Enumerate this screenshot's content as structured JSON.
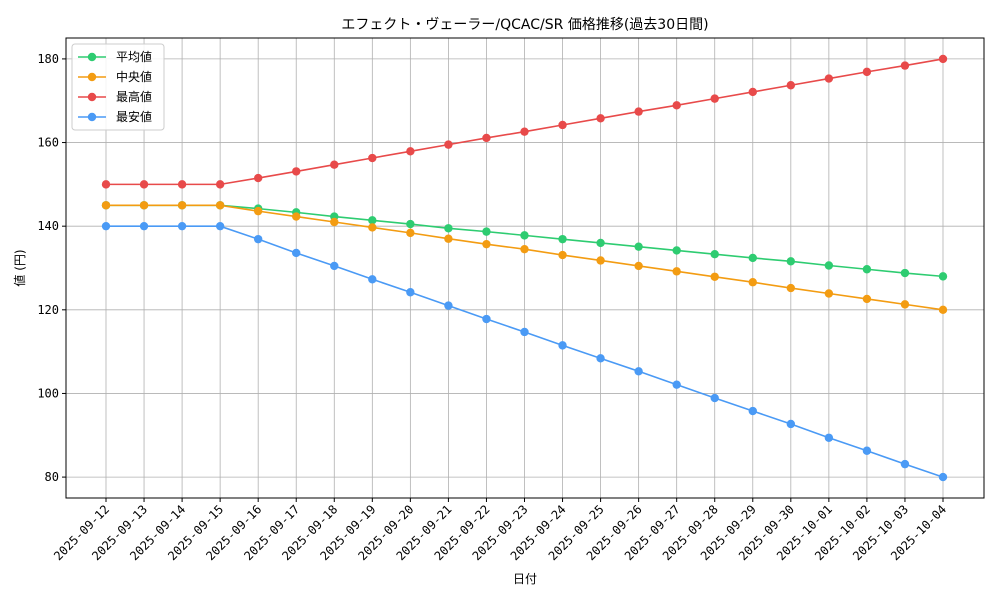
{
  "chart_data": {
    "type": "line",
    "title": "エフェクト・ヴェーラー/QCAC/SR 価格推移(過去30日間)",
    "xlabel": "日付",
    "ylabel": "値 (円)",
    "ylim": [
      75,
      185
    ],
    "yticks": [
      80,
      100,
      120,
      140,
      160,
      180
    ],
    "grid": true,
    "legend_position": "top-left",
    "categories": [
      "2025-09-12",
      "2025-09-13",
      "2025-09-14",
      "2025-09-15",
      "2025-09-16",
      "2025-09-17",
      "2025-09-18",
      "2025-09-19",
      "2025-09-20",
      "2025-09-21",
      "2025-09-22",
      "2025-09-23",
      "2025-09-24",
      "2025-09-25",
      "2025-09-26",
      "2025-09-27",
      "2025-09-28",
      "2025-09-29",
      "2025-09-30",
      "2025-10-01",
      "2025-10-02",
      "2025-10-03",
      "2025-10-04"
    ],
    "series": [
      {
        "name": "平均値",
        "color": "#2ecc71",
        "values": [
          145,
          145,
          145,
          145,
          144.2,
          143.3,
          142.3,
          141.4,
          140.5,
          139.5,
          138.7,
          137.8,
          136.9,
          136.0,
          135.1,
          134.2,
          133.3,
          132.4,
          131.6,
          130.6,
          129.7,
          128.8,
          128.0
        ]
      },
      {
        "name": "中央値",
        "color": "#f39c12",
        "values": [
          145,
          145,
          145,
          145,
          143.6,
          142.3,
          141.0,
          139.7,
          138.4,
          137.0,
          135.7,
          134.5,
          133.1,
          131.8,
          130.5,
          129.2,
          127.9,
          126.6,
          125.2,
          123.9,
          122.6,
          121.3,
          120.0
        ]
      },
      {
        "name": "最高値",
        "color": "#e84a4a",
        "values": [
          150,
          150,
          150,
          150,
          151.5,
          153.1,
          154.7,
          156.3,
          157.9,
          159.5,
          161.1,
          162.6,
          164.2,
          165.8,
          167.4,
          168.9,
          170.5,
          172.1,
          173.7,
          175.3,
          176.9,
          178.4,
          180.0
        ]
      },
      {
        "name": "最安値",
        "color": "#4a9af5",
        "values": [
          140,
          140,
          140,
          140,
          136.9,
          133.6,
          130.5,
          127.3,
          124.2,
          121.0,
          117.8,
          114.7,
          111.5,
          108.4,
          105.3,
          102.1,
          98.9,
          95.8,
          92.7,
          89.4,
          86.3,
          83.1,
          80.0
        ]
      }
    ]
  }
}
